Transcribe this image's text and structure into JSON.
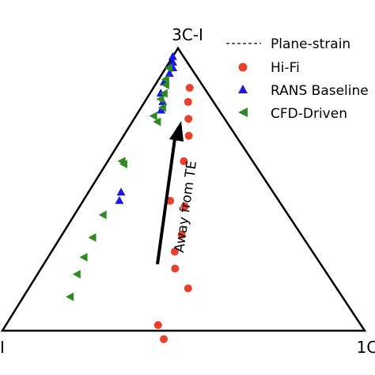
{
  "chart_data": {
    "type": "scatter",
    "title": "",
    "vertex_labels": {
      "top": "3C-I",
      "bottom_left": "I",
      "bottom_right": "1C"
    },
    "annotation": "Away from TE",
    "legend": {
      "position": "top-right",
      "entries": [
        "Plane-strain",
        "Hi-Fi",
        "RANS Baseline",
        "CFD-Driven"
      ]
    },
    "colors": {
      "hifi": "#e8402a",
      "rans": "#1a1adf",
      "cfd": "#2e8b22",
      "frame": "#000000"
    },
    "coordinate_system": "barycentric [1C, 2C, 3C]",
    "series": [
      {
        "name": "Plane-strain",
        "marker": "dashed-line",
        "points": [
          [
            0.64,
            0.0,
            0.36
          ],
          [
            0.0,
            0.0,
            1.0
          ]
        ]
      },
      {
        "name": "Hi-Fi",
        "marker": "circle",
        "points": [
          [
            0.1,
            0.04,
            0.86
          ],
          [
            0.12,
            0.07,
            0.81
          ],
          [
            0.15,
            0.1,
            0.75
          ],
          [
            0.18,
            0.13,
            0.69
          ],
          [
            0.21,
            0.19,
            0.6
          ],
          [
            0.24,
            0.3,
            0.46
          ],
          [
            0.29,
            0.27,
            0.44
          ],
          [
            0.33,
            0.33,
            0.34
          ],
          [
            0.34,
            0.38,
            0.28
          ],
          [
            0.37,
            0.41,
            0.22
          ],
          [
            0.42,
            0.56,
            0.02
          ],
          [
            0.44,
            0.41,
            0.15
          ],
          [
            0.46,
            0.57,
            -0.03
          ]
        ]
      },
      {
        "name": "RANS Baseline",
        "marker": "triangle-up",
        "points": [
          [
            0.0,
            0.03,
            0.97
          ],
          [
            0.01,
            0.04,
            0.95
          ],
          [
            0.02,
            0.05,
            0.93
          ],
          [
            0.02,
            0.07,
            0.91
          ],
          [
            0.02,
            0.1,
            0.88
          ],
          [
            0.03,
            0.13,
            0.84
          ],
          [
            0.05,
            0.14,
            0.81
          ],
          [
            0.06,
            0.16,
            0.78
          ],
          [
            0.09,
            0.42,
            0.49
          ],
          [
            0.1,
            0.44,
            0.46
          ]
        ]
      },
      {
        "name": "CFD-Driven",
        "marker": "triangle-left",
        "points": [
          [
            0.01,
            0.06,
            0.93
          ],
          [
            0.02,
            0.09,
            0.89
          ],
          [
            0.03,
            0.1,
            0.87
          ],
          [
            0.04,
            0.12,
            0.84
          ],
          [
            0.04,
            0.14,
            0.82
          ],
          [
            0.06,
            0.15,
            0.79
          ],
          [
            0.05,
            0.19,
            0.76
          ],
          [
            0.07,
            0.19,
            0.74
          ],
          [
            0.04,
            0.36,
            0.6
          ],
          [
            0.05,
            0.36,
            0.59
          ],
          [
            0.08,
            0.51,
            0.41
          ],
          [
            0.09,
            0.58,
            0.33
          ],
          [
            0.13,
            0.75,
            0.12
          ],
          [
            0.1,
            0.64,
            0.26
          ],
          [
            0.11,
            0.69,
            0.2
          ]
        ]
      }
    ]
  }
}
